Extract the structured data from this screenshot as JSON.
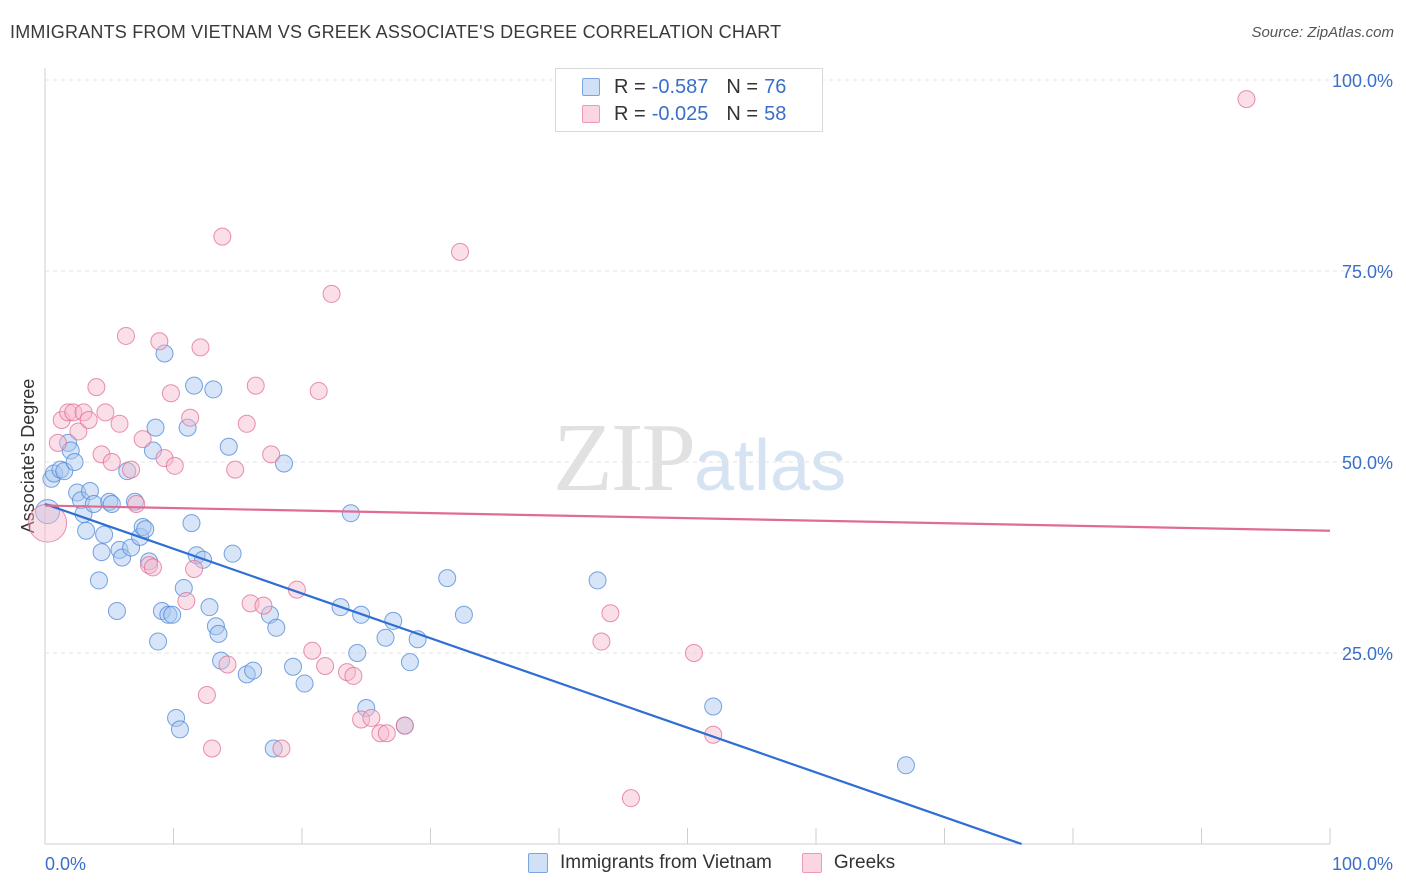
{
  "title": "IMMIGRANTS FROM VIETNAM VS GREEK ASSOCIATE'S DEGREE CORRELATION CHART",
  "source": "Source: ZipAtlas.com",
  "watermark": {
    "zip": "ZIP",
    "atlas": "atlas"
  },
  "legend_top": [
    {
      "r_label": "R =",
      "r_value": "-0.587",
      "n_label": "N =",
      "n_value": "76",
      "color": "#a9c6ef"
    },
    {
      "r_label": "R =",
      "r_value": "-0.025",
      "n_label": "N =",
      "n_value": "58",
      "color": "#f6b8cb"
    }
  ],
  "legend_bottom": [
    {
      "label": "Immigrants from Vietnam",
      "color": "#a9c6ef"
    },
    {
      "label": "Greeks",
      "color": "#f6b8cb"
    }
  ],
  "colors": {
    "blue": "#4a86d8",
    "blue_fill": "#a9c6ef",
    "pink": "#e06c93",
    "pink_fill": "#f6b8cb",
    "axis_text": "#3a6fc9"
  },
  "chart_data": {
    "type": "scatter",
    "title": "IMMIGRANTS FROM VIETNAM VS GREEK ASSOCIATE'S DEGREE CORRELATION CHART",
    "xlabel": "",
    "ylabel": "Associate's Degree",
    "xlim": [
      0,
      100
    ],
    "ylim": [
      0,
      100
    ],
    "x_tick_labels": [
      "0.0%",
      "100.0%"
    ],
    "y_ticks": [
      25,
      50,
      75,
      100
    ],
    "y_tick_labels": [
      "25.0%",
      "50.0%",
      "75.0%",
      "100.0%"
    ],
    "grid": true,
    "legend_position": "top-center",
    "series": [
      {
        "name": "Immigrants from Vietnam",
        "color": "#4a86d8",
        "fill": "#a9c6ef",
        "r": -0.587,
        "n": 76,
        "trend": {
          "x": [
            0,
            76
          ],
          "y": [
            44.5,
            0
          ]
        },
        "points": [
          [
            0.2,
            43.5
          ],
          [
            0.5,
            47.8
          ],
          [
            0.7,
            48.5
          ],
          [
            1.2,
            49.0
          ],
          [
            1.5,
            48.8
          ],
          [
            1.8,
            52.5
          ],
          [
            2.0,
            51.5
          ],
          [
            2.3,
            50.0
          ],
          [
            2.5,
            46.0
          ],
          [
            2.8,
            45.0
          ],
          [
            3.0,
            43.2
          ],
          [
            3.2,
            41.0
          ],
          [
            3.5,
            46.2
          ],
          [
            3.8,
            44.5
          ],
          [
            4.2,
            34.5
          ],
          [
            4.4,
            38.2
          ],
          [
            4.6,
            40.5
          ],
          [
            5.0,
            44.8
          ],
          [
            5.2,
            44.5
          ],
          [
            5.6,
            30.5
          ],
          [
            5.8,
            38.5
          ],
          [
            6.0,
            37.5
          ],
          [
            6.4,
            48.8
          ],
          [
            6.7,
            38.8
          ],
          [
            7.0,
            44.8
          ],
          [
            7.4,
            40.2
          ],
          [
            7.6,
            41.5
          ],
          [
            7.8,
            41.2
          ],
          [
            8.1,
            37.0
          ],
          [
            8.4,
            51.5
          ],
          [
            8.6,
            54.5
          ],
          [
            8.8,
            26.5
          ],
          [
            9.1,
            30.5
          ],
          [
            9.3,
            64.2
          ],
          [
            9.6,
            30.0
          ],
          [
            9.9,
            30.0
          ],
          [
            10.2,
            16.5
          ],
          [
            10.5,
            15.0
          ],
          [
            10.8,
            33.5
          ],
          [
            11.1,
            54.5
          ],
          [
            11.4,
            42.0
          ],
          [
            11.6,
            60.0
          ],
          [
            11.8,
            37.8
          ],
          [
            12.3,
            37.2
          ],
          [
            12.8,
            31.0
          ],
          [
            13.1,
            59.5
          ],
          [
            13.3,
            28.5
          ],
          [
            13.5,
            27.5
          ],
          [
            13.7,
            24.0
          ],
          [
            14.3,
            52.0
          ],
          [
            14.6,
            38.0
          ],
          [
            15.7,
            22.2
          ],
          [
            16.2,
            22.7
          ],
          [
            17.5,
            30.0
          ],
          [
            17.8,
            12.5
          ],
          [
            18.0,
            28.3
          ],
          [
            18.6,
            49.8
          ],
          [
            19.3,
            23.2
          ],
          [
            20.2,
            21.0
          ],
          [
            23.0,
            31.0
          ],
          [
            23.8,
            43.3
          ],
          [
            24.3,
            25.0
          ],
          [
            24.6,
            30.0
          ],
          [
            25.0,
            17.8
          ],
          [
            26.5,
            27.0
          ],
          [
            27.1,
            29.2
          ],
          [
            28.0,
            15.5
          ],
          [
            28.4,
            23.8
          ],
          [
            29.0,
            26.8
          ],
          [
            31.3,
            34.8
          ],
          [
            32.6,
            30.0
          ],
          [
            43.0,
            34.5
          ],
          [
            52.0,
            18.0
          ],
          [
            67.0,
            10.3
          ]
        ]
      },
      {
        "name": "Greeks",
        "color": "#e06c93",
        "fill": "#f6b8cb",
        "r": -0.025,
        "n": 58,
        "trend": {
          "x": [
            0,
            100
          ],
          "y": [
            44.3,
            41.0
          ]
        },
        "points": [
          [
            0.2,
            42.0
          ],
          [
            1.0,
            52.5
          ],
          [
            1.3,
            55.5
          ],
          [
            1.8,
            56.5
          ],
          [
            2.2,
            56.5
          ],
          [
            2.6,
            54.0
          ],
          [
            3.0,
            56.5
          ],
          [
            3.4,
            55.5
          ],
          [
            4.0,
            59.8
          ],
          [
            4.4,
            51.0
          ],
          [
            4.7,
            56.5
          ],
          [
            5.2,
            50.0
          ],
          [
            5.8,
            55.0
          ],
          [
            6.3,
            66.5
          ],
          [
            6.7,
            49.0
          ],
          [
            7.1,
            44.5
          ],
          [
            7.6,
            53.0
          ],
          [
            8.1,
            36.5
          ],
          [
            8.4,
            36.2
          ],
          [
            8.9,
            65.8
          ],
          [
            9.3,
            50.5
          ],
          [
            9.8,
            59.0
          ],
          [
            10.1,
            49.5
          ],
          [
            11.0,
            31.8
          ],
          [
            11.3,
            55.8
          ],
          [
            11.6,
            36.0
          ],
          [
            12.1,
            65.0
          ],
          [
            12.6,
            19.5
          ],
          [
            13.0,
            12.5
          ],
          [
            13.8,
            79.5
          ],
          [
            14.2,
            23.5
          ],
          [
            14.8,
            49.0
          ],
          [
            15.7,
            55.0
          ],
          [
            16.0,
            31.5
          ],
          [
            16.4,
            60.0
          ],
          [
            17.0,
            31.2
          ],
          [
            17.6,
            51.0
          ],
          [
            18.4,
            12.5
          ],
          [
            19.6,
            33.3
          ],
          [
            20.8,
            25.3
          ],
          [
            21.3,
            59.3
          ],
          [
            21.8,
            23.3
          ],
          [
            22.3,
            72.0
          ],
          [
            23.5,
            22.5
          ],
          [
            24.0,
            22.0
          ],
          [
            24.6,
            16.3
          ],
          [
            25.4,
            16.5
          ],
          [
            26.1,
            14.5
          ],
          [
            26.6,
            14.5
          ],
          [
            28.0,
            15.5
          ],
          [
            32.3,
            77.5
          ],
          [
            43.3,
            26.5
          ],
          [
            44.0,
            30.2
          ],
          [
            45.6,
            6.0
          ],
          [
            50.5,
            25.0
          ],
          [
            52.0,
            14.3
          ],
          [
            56.5,
            100.0
          ],
          [
            93.5,
            97.5
          ]
        ]
      }
    ]
  }
}
